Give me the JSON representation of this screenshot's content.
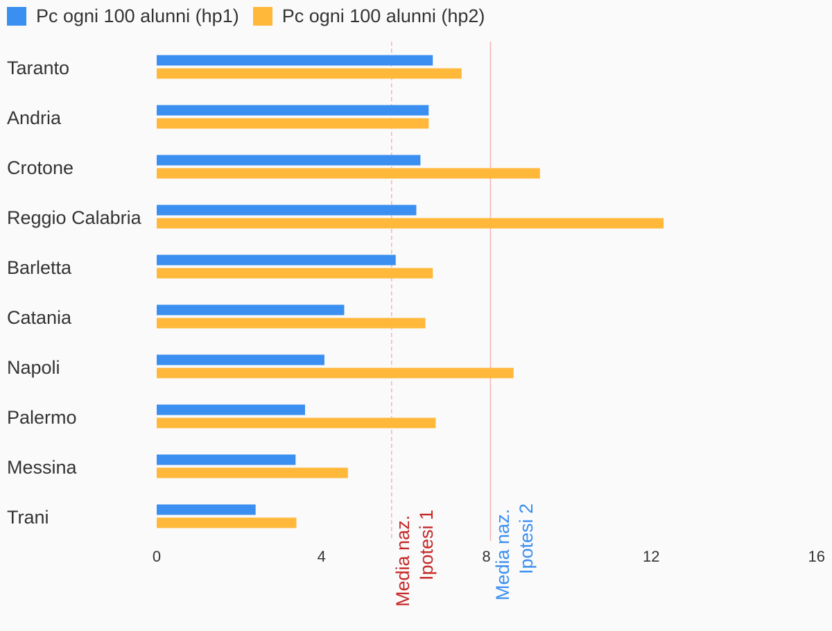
{
  "chart_data": {
    "type": "bar",
    "orientation": "horizontal",
    "categories": [
      "Taranto",
      "Andria",
      "Crotone",
      "Reggio Calabria",
      "Barletta",
      "Catania",
      "Napoli",
      "Palermo",
      "Messina",
      "Trani"
    ],
    "series": [
      {
        "name": "Pc ogni 100 alunni (hp1)",
        "color": "#3a8ff0",
        "values": [
          6.7,
          6.6,
          6.4,
          6.3,
          5.8,
          4.55,
          4.07,
          3.6,
          3.37,
          2.4
        ]
      },
      {
        "name": "Pc ogni 100 alunni (hp2)",
        "color": "#ffb83a",
        "values": [
          7.4,
          6.6,
          9.3,
          12.3,
          6.7,
          6.52,
          8.66,
          6.77,
          4.64,
          3.39
        ]
      }
    ],
    "xlim": [
      0,
      16
    ],
    "xticks": [
      0,
      4,
      8,
      12,
      16
    ],
    "legend_position": "top-left",
    "reference_lines": [
      {
        "value": 5.7,
        "line1": "Media naz.",
        "line2": "Ipotesi 1",
        "color": "#c62828",
        "line_color": "#f5b4b4",
        "dashed": true
      },
      {
        "value": 8.1,
        "line1": "Media naz.",
        "line2": "Ipotesi 2",
        "color": "#3a8ff0",
        "line_color": "#f5b4b4",
        "dashed": false
      }
    ]
  }
}
